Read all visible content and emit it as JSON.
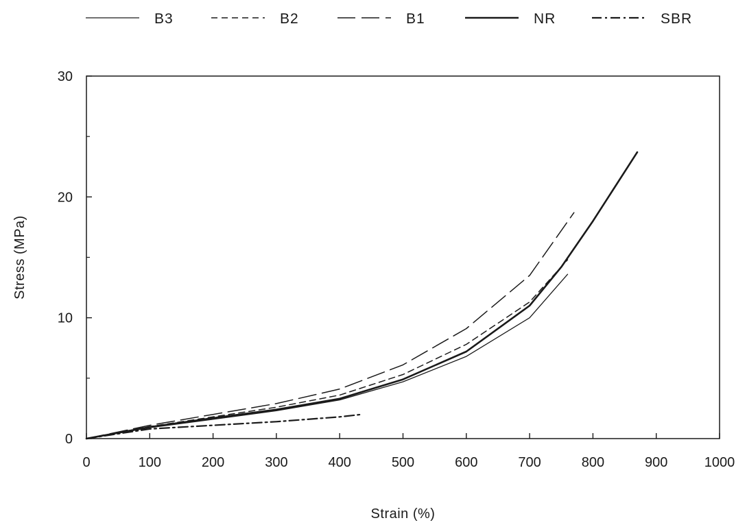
{
  "chart_data": {
    "type": "line",
    "title": "",
    "xlabel": "Strain (%)",
    "ylabel": "Stress (MPa)",
    "xlim": [
      0,
      1000
    ],
    "ylim": [
      0,
      30
    ],
    "x_ticks": [
      "0",
      "100",
      "200",
      "300",
      "400",
      "500",
      "600",
      "700",
      "800",
      "900",
      "1000"
    ],
    "y_ticks": [
      "0",
      "10",
      "20",
      "30"
    ],
    "grid": false,
    "legend_position": "top",
    "series": [
      {
        "name": "B3",
        "line_style": "solid-thin",
        "points": [
          [
            0,
            0
          ],
          [
            100,
            0.9
          ],
          [
            200,
            1.6
          ],
          [
            300,
            2.3
          ],
          [
            400,
            3.2
          ],
          [
            500,
            4.7
          ],
          [
            600,
            6.8
          ],
          [
            700,
            10.0
          ],
          [
            760,
            13.6
          ]
        ]
      },
      {
        "name": "B2",
        "line_style": "dashed",
        "points": [
          [
            0,
            0
          ],
          [
            100,
            1.0
          ],
          [
            200,
            1.8
          ],
          [
            300,
            2.6
          ],
          [
            400,
            3.6
          ],
          [
            500,
            5.3
          ],
          [
            600,
            7.8
          ],
          [
            700,
            11.3
          ],
          [
            760,
            14.8
          ]
        ]
      },
      {
        "name": "B1",
        "line_style": "long-dash",
        "points": [
          [
            0,
            0
          ],
          [
            100,
            1.1
          ],
          [
            200,
            2.0
          ],
          [
            300,
            2.9
          ],
          [
            400,
            4.1
          ],
          [
            500,
            6.1
          ],
          [
            600,
            9.1
          ],
          [
            700,
            13.5
          ],
          [
            770,
            18.7
          ]
        ]
      },
      {
        "name": "NR",
        "line_style": "solid-thick",
        "points": [
          [
            0,
            0
          ],
          [
            100,
            0.95
          ],
          [
            200,
            1.7
          ],
          [
            300,
            2.4
          ],
          [
            400,
            3.3
          ],
          [
            500,
            4.9
          ],
          [
            600,
            7.2
          ],
          [
            700,
            11.0
          ],
          [
            750,
            14.2
          ],
          [
            800,
            18.0
          ],
          [
            870,
            23.7
          ]
        ]
      },
      {
        "name": "SBR",
        "line_style": "dash-dot",
        "points": [
          [
            0,
            0
          ],
          [
            100,
            0.8
          ],
          [
            200,
            1.1
          ],
          [
            300,
            1.4
          ],
          [
            400,
            1.8
          ],
          [
            435,
            2.0
          ]
        ]
      }
    ]
  }
}
